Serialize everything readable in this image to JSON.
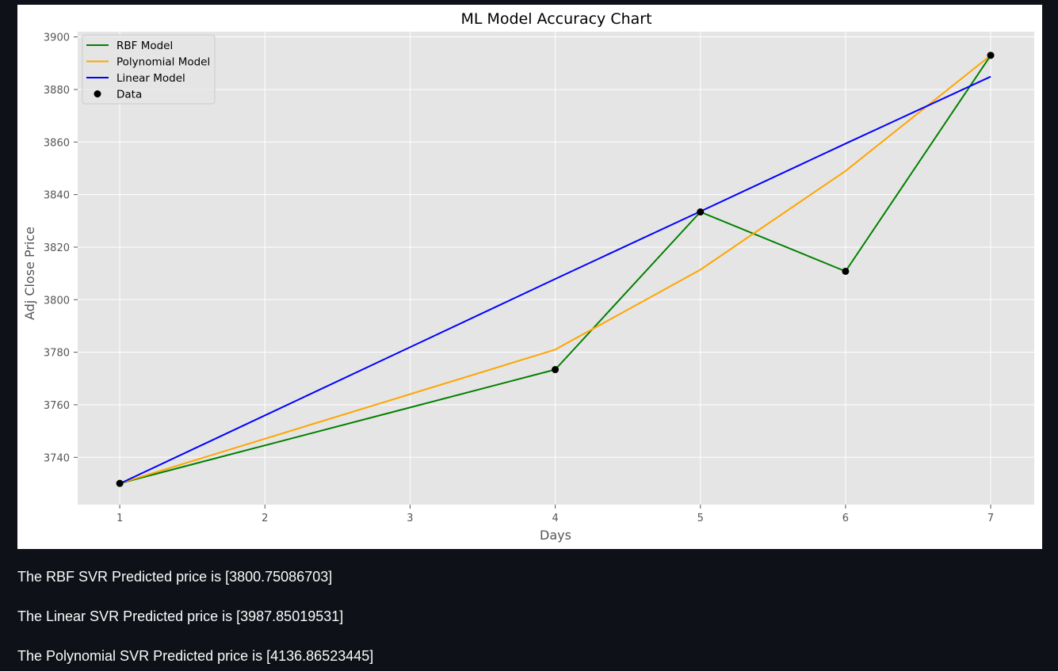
{
  "chart_data": {
    "type": "line",
    "title": "ML Model Accuracy Chart",
    "xlabel": "Days",
    "ylabel": "Adj Close Price",
    "x_ticks": [
      1,
      2,
      3,
      4,
      5,
      6,
      7
    ],
    "y_ticks": [
      3740,
      3760,
      3780,
      3800,
      3820,
      3840,
      3860,
      3880,
      3900
    ],
    "xlim": [
      0.71,
      7.3
    ],
    "ylim": [
      3722,
      3902
    ],
    "grid": true,
    "legend_position": "top-left",
    "x": [
      1,
      4,
      5,
      6,
      7
    ],
    "series": [
      {
        "name": "RBF Model",
        "type": "line",
        "color": "#008000",
        "values": [
          3730.1,
          3773.4,
          3833.4,
          3810.8,
          3893.0
        ]
      },
      {
        "name": "Polynomial Model",
        "type": "line",
        "color": "#ffa500",
        "values": [
          3730.1,
          3781.0,
          3811.4,
          3849.0,
          3893.0
        ]
      },
      {
        "name": "Linear Model",
        "type": "line",
        "color": "#0000ff",
        "values": [
          3730.0,
          3807.9,
          3833.6,
          3859.4,
          3884.9
        ]
      },
      {
        "name": "Data",
        "type": "scatter",
        "color": "#000000",
        "values": [
          3730.1,
          3773.4,
          3833.4,
          3810.8,
          3893.0
        ]
      }
    ]
  },
  "results": [
    "The RBF SVR Predicted price is [3800.75086703]",
    "The Linear SVR Predicted price is [3987.85019531]",
    "The Polynomial SVR Predicted price is [4136.86523445]"
  ]
}
